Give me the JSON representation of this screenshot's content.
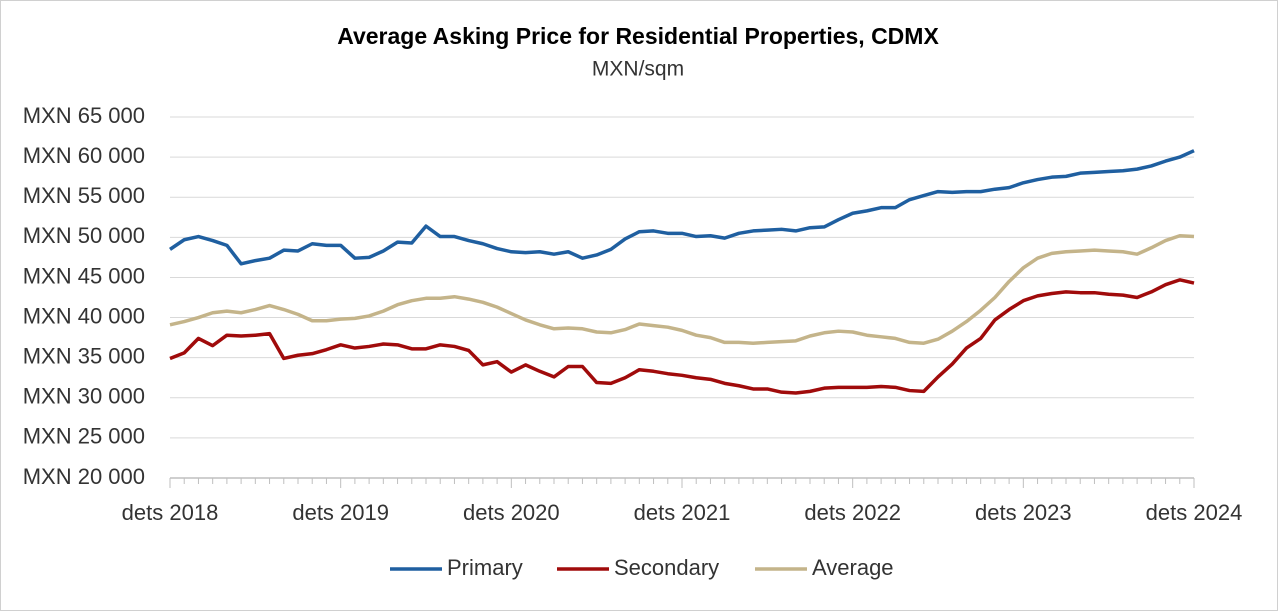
{
  "chart_data": {
    "type": "line",
    "title": "Average Asking Price for Residential Properties, CDMX",
    "subtitle": "MXN/sqm",
    "categories": [
      "dets 2018",
      null,
      null,
      null,
      null,
      null,
      null,
      null,
      null,
      null,
      null,
      null,
      "dets 2019",
      null,
      null,
      null,
      null,
      null,
      null,
      null,
      null,
      null,
      null,
      null,
      "dets 2020",
      null,
      null,
      null,
      null,
      null,
      null,
      null,
      null,
      null,
      null,
      null,
      "dets 2021",
      null,
      null,
      null,
      null,
      null,
      null,
      null,
      null,
      null,
      null,
      null,
      "dets 2022",
      null,
      null,
      null,
      null,
      null,
      null,
      null,
      null,
      null,
      null,
      null,
      "dets 2023",
      null,
      null,
      null,
      null,
      null,
      null,
      null,
      null,
      null,
      null,
      null,
      "dets 2024"
    ],
    "series": [
      {
        "name": "Primary",
        "color": "#1f5fa0",
        "values": [
          48500,
          49700,
          50100,
          49600,
          49000,
          46700,
          47100,
          47400,
          48400,
          48300,
          49200,
          49000,
          49000,
          47400,
          47500,
          48300,
          49400,
          49300,
          51400,
          50100,
          50100,
          49600,
          49200,
          48600,
          48200,
          48100,
          48200,
          47900,
          48200,
          47400,
          47800,
          48500,
          49800,
          50700,
          50800,
          50500,
          50500,
          50100,
          50200,
          49900,
          50500,
          50800,
          50900,
          51000,
          50800,
          51200,
          51300,
          52200,
          53000,
          53300,
          53700,
          53700,
          54700,
          55200,
          55700,
          55600,
          55700,
          55700,
          56000,
          56200,
          56800,
          57200,
          57500,
          57600,
          58000,
          58100,
          58200,
          58300,
          58500,
          58900,
          59500,
          60000,
          60800
        ]
      },
      {
        "name": "Secondary",
        "color": "#a00b0b",
        "values": [
          34900,
          35600,
          37400,
          36500,
          37800,
          37700,
          37800,
          38000,
          34900,
          35300,
          35500,
          36000,
          36600,
          36200,
          36400,
          36700,
          36600,
          36100,
          36100,
          36600,
          36400,
          35900,
          34100,
          34500,
          33200,
          34100,
          33300,
          32600,
          33900,
          33900,
          31900,
          31800,
          32500,
          33500,
          33300,
          33000,
          32800,
          32500,
          32300,
          31800,
          31500,
          31100,
          31100,
          30700,
          30600,
          30800,
          31200,
          31300,
          31300,
          31300,
          31400,
          31300,
          30900,
          30800,
          32600,
          34200,
          36200,
          37400,
          39700,
          41000,
          42100,
          42700,
          43000,
          43200,
          43100,
          43100,
          42900,
          42800,
          42500,
          43200,
          44100,
          44700,
          44300
        ]
      },
      {
        "name": "Average",
        "color": "#c4b48a",
        "values": [
          39100,
          39500,
          40000,
          40600,
          40800,
          40600,
          41000,
          41500,
          41000,
          40400,
          39600,
          39600,
          39800,
          39900,
          40200,
          40800,
          41600,
          42100,
          42400,
          42400,
          42600,
          42300,
          41900,
          41300,
          40500,
          39700,
          39100,
          38600,
          38700,
          38600,
          38200,
          38100,
          38500,
          39200,
          39000,
          38800,
          38400,
          37800,
          37500,
          36900,
          36900,
          36800,
          36900,
          37000,
          37100,
          37700,
          38100,
          38300,
          38200,
          37800,
          37600,
          37400,
          36900,
          36800,
          37300,
          38300,
          39500,
          40900,
          42500,
          44500,
          46200,
          47400,
          48000,
          48200,
          48300,
          48400,
          48300,
          48200,
          47900,
          48700,
          49600,
          50200,
          50100
        ]
      }
    ],
    "ylim": [
      20000,
      65000
    ],
    "yticks": [
      {
        "value": 20000,
        "label": "MXN 20 000"
      },
      {
        "value": 25000,
        "label": "MXN 25 000"
      },
      {
        "value": 30000,
        "label": "MXN 30 000"
      },
      {
        "value": 35000,
        "label": "MXN 35 000"
      },
      {
        "value": 40000,
        "label": "MXN 40 000"
      },
      {
        "value": 45000,
        "label": "MXN 45 000"
      },
      {
        "value": 50000,
        "label": "MXN 50 000"
      },
      {
        "value": 55000,
        "label": "MXN 55 000"
      },
      {
        "value": 60000,
        "label": "MXN 60 000"
      },
      {
        "value": 65000,
        "label": "MXN 65 000"
      }
    ],
    "grid": true
  }
}
